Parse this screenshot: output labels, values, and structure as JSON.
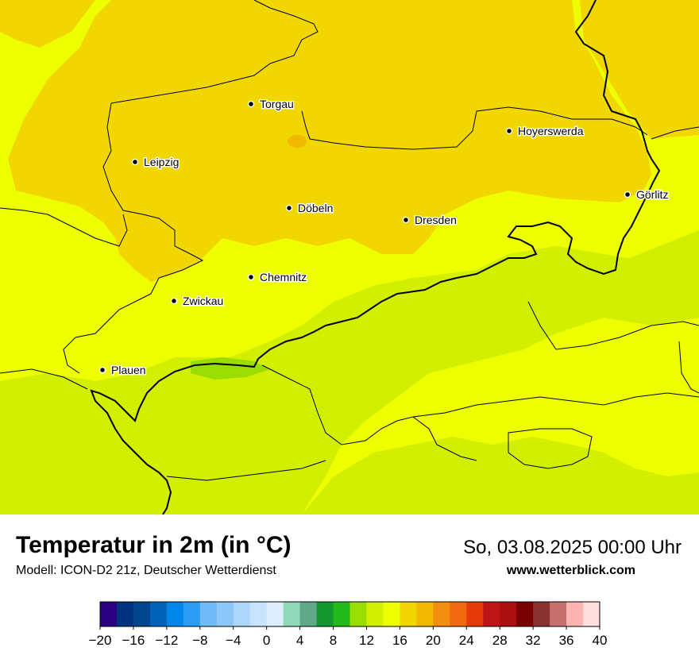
{
  "header": {
    "title": "Temperatur in 2m (in °C)",
    "subtitle": "Modell: ICON-D2 21z, Deutscher Wetterdienst",
    "datetime": "So, 03.08.2025 00:00 Uhr",
    "website": "www.wetterblick.com"
  },
  "cities": [
    {
      "name": "Torgau"
    },
    {
      "name": "Hoyerswerda"
    },
    {
      "name": "Leipzig"
    },
    {
      "name": "Görlitz"
    },
    {
      "name": "Döbeln"
    },
    {
      "name": "Dresden"
    },
    {
      "name": "Chemnitz"
    },
    {
      "name": "Zwickau"
    },
    {
      "name": "Plauen"
    }
  ],
  "legend": {
    "min": -20,
    "max": 40,
    "step": 2,
    "tick_labels": [
      "−20",
      "−16",
      "−12",
      "−8",
      "−4",
      "0",
      "4",
      "8",
      "12",
      "16",
      "20",
      "24",
      "28",
      "32",
      "36",
      "40"
    ],
    "colors": [
      "#2a0080",
      "#00337f",
      "#00468c",
      "#0063b8",
      "#0086e6",
      "#2b9cf6",
      "#70baf8",
      "#8cc7fa",
      "#aed6fc",
      "#c8e4fd",
      "#dcedfe",
      "#8fd9b9",
      "#5fa98a",
      "#139831",
      "#20bb1b",
      "#99dd03",
      "#d2ef00",
      "#eeff00",
      "#f2d600",
      "#f2b800",
      "#f28e10",
      "#f26a10",
      "#e63a0a",
      "#bd1515",
      "#aa1010",
      "#7a0000",
      "#8a3232",
      "#c67070",
      "#ffb3b3",
      "#ffdede"
    ]
  },
  "map_colors": {
    "temp_14": "#d2ef00",
    "temp_16": "#eeff00",
    "temp_18": "#f2d600",
    "temp_20": "#f2b800",
    "border": "#000000"
  }
}
